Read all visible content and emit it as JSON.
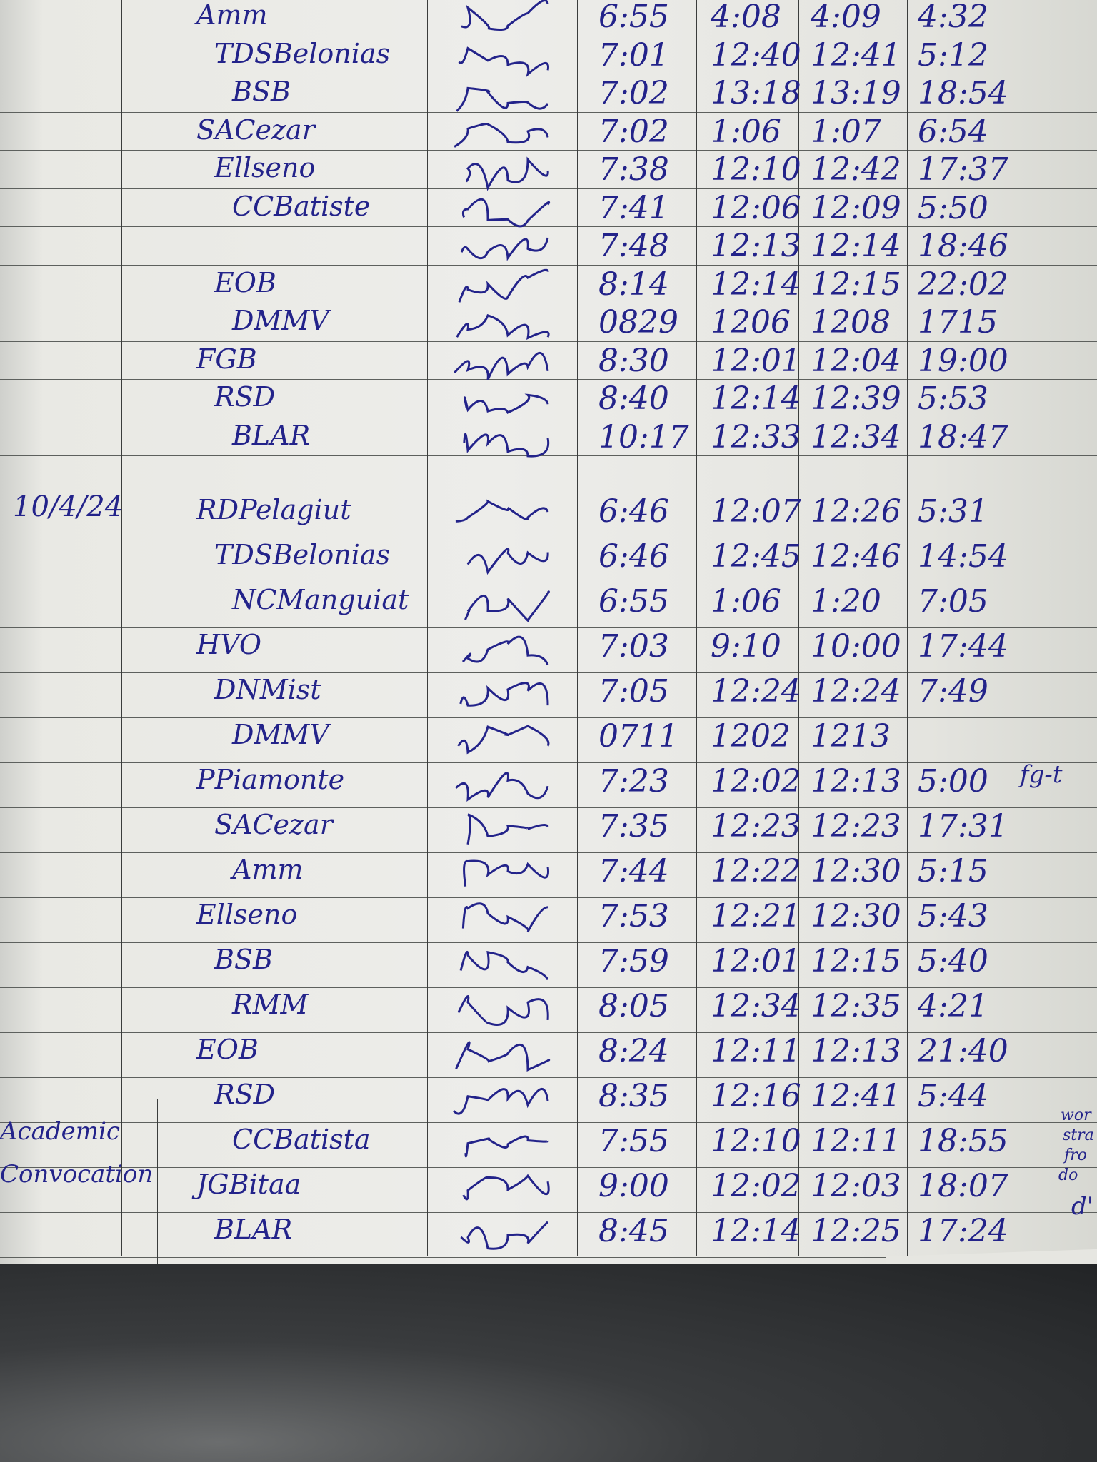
{
  "ink_color": "#23238a",
  "paper_color": "#ececE8",
  "block1": {
    "date": "",
    "rows": [
      {
        "name": "Amm",
        "time_in": "6:55",
        "lunch_out": "4:08",
        "lunch_in": "4:09",
        "time_out": "4:32"
      },
      {
        "name": "TDSBelonias",
        "time_in": "7:01",
        "lunch_out": "12:40",
        "lunch_in": "12:41",
        "time_out": "5:12"
      },
      {
        "name": "BSB",
        "time_in": "7:02",
        "lunch_out": "13:18",
        "lunch_in": "13:19",
        "time_out": "18:54"
      },
      {
        "name": "SACezar",
        "time_in": "7:02",
        "lunch_out": "1:06",
        "lunch_in": "1:07",
        "time_out": "6:54"
      },
      {
        "name": "Ellseno",
        "time_in": "7:38",
        "lunch_out": "12:10",
        "lunch_in": "12:42",
        "time_out": "17:37"
      },
      {
        "name": "CCBatiste",
        "time_in": "7:41",
        "lunch_out": "12:06",
        "lunch_in": "12:09",
        "time_out": "5:50"
      },
      {
        "name": "",
        "time_in": "7:48",
        "lunch_out": "12:13",
        "lunch_in": "12:14",
        "time_out": "18:46"
      },
      {
        "name": "EOB",
        "time_in": "8:14",
        "lunch_out": "12:14",
        "lunch_in": "12:15",
        "time_out": "22:02"
      },
      {
        "name": "DMMV",
        "time_in": "0829",
        "lunch_out": "1206",
        "lunch_in": "1208",
        "time_out": "1715"
      },
      {
        "name": "FGB",
        "time_in": "8:30",
        "lunch_out": "12:01",
        "lunch_in": "12:04",
        "time_out": "19:00"
      },
      {
        "name": "RSD",
        "time_in": "8:40",
        "lunch_out": "12:14",
        "lunch_in": "12:39",
        "time_out": "5:53"
      },
      {
        "name": "BLAR",
        "time_in": "10:17",
        "lunch_out": "12:33",
        "lunch_in": "12:34",
        "time_out": "18:47"
      }
    ]
  },
  "block2": {
    "date": "10/4/24",
    "margin_label": [
      "Academic",
      "Convocation"
    ],
    "rows": [
      {
        "name": "RDPelagiut",
        "time_in": "6:46",
        "lunch_out": "12:07",
        "lunch_in": "12:26",
        "time_out": "5:31"
      },
      {
        "name": "TDSBelonias",
        "time_in": "6:46",
        "lunch_out": "12:45",
        "lunch_in": "12:46",
        "time_out": "14:54"
      },
      {
        "name": "NCManguiat",
        "time_in": "6:55",
        "lunch_out": "1:06",
        "lunch_in": "1:20",
        "time_out": "7:05"
      },
      {
        "name": "HVO",
        "time_in": "7:03",
        "lunch_out": "9:10",
        "lunch_in": "10:00",
        "time_out": "17:44"
      },
      {
        "name": "DNMist",
        "time_in": "7:05",
        "lunch_out": "12:24",
        "lunch_in": "12:24",
        "time_out": "7:49"
      },
      {
        "name": "DMMV",
        "time_in": "0711",
        "lunch_out": "1202",
        "lunch_in": "1213",
        "time_out": ""
      },
      {
        "name": "PPiamonte",
        "time_in": "7:23",
        "lunch_out": "12:02",
        "lunch_in": "12:13",
        "time_out": "5:00"
      },
      {
        "name": "SACezar",
        "time_in": "7:35",
        "lunch_out": "12:23",
        "lunch_in": "12:23",
        "time_out": "17:31"
      },
      {
        "name": "Amm",
        "time_in": "7:44",
        "lunch_out": "12:22",
        "lunch_in": "12:30",
        "time_out": "5:15"
      },
      {
        "name": "Ellseno",
        "time_in": "7:53",
        "lunch_out": "12:21",
        "lunch_in": "12:30",
        "time_out": "5:43"
      },
      {
        "name": "BSB",
        "time_in": "7:59",
        "lunch_out": "12:01",
        "lunch_in": "12:15",
        "time_out": "5:40"
      },
      {
        "name": "RMM",
        "time_in": "8:05",
        "lunch_out": "12:34",
        "lunch_in": "12:35",
        "time_out": "4:21"
      },
      {
        "name": "EOB",
        "time_in": "8:24",
        "lunch_out": "12:11",
        "lunch_in": "12:13",
        "time_out": "21:40"
      },
      {
        "name": "RSD",
        "time_in": "8:35",
        "lunch_out": "12:16",
        "lunch_in": "12:41",
        "time_out": "5:44"
      },
      {
        "name": "CCBatista",
        "time_in": "7:55",
        "lunch_out": "12:10",
        "lunch_in": "12:11",
        "time_out": "18:55"
      },
      {
        "name": "JGBitaa",
        "time_in": "9:00",
        "lunch_out": "12:02",
        "lunch_in": "12:03",
        "time_out": "18:07"
      },
      {
        "name": "BLAR",
        "time_in": "8:45",
        "lunch_out": "12:14",
        "lunch_in": "12:25",
        "time_out": "17:24"
      }
    ]
  },
  "margin_notes": [
    "fg-t",
    "wor",
    "stra",
    "fro",
    "do",
    "d'"
  ]
}
